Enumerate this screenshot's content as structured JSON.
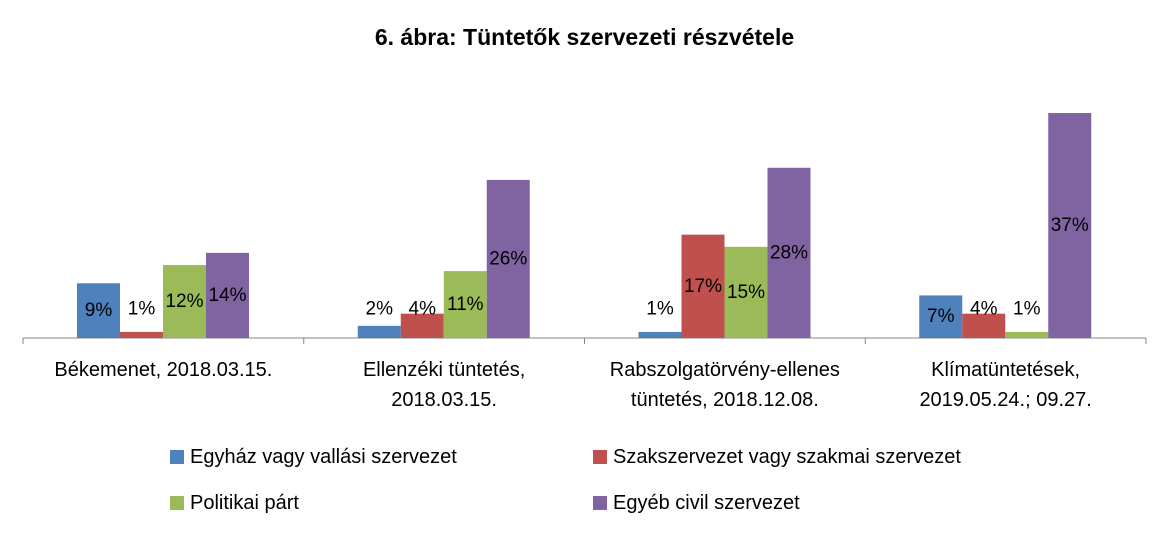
{
  "chart_data": {
    "type": "bar",
    "title": "6. ábra: Tüntetők szervezeti részvétele",
    "categories": [
      [
        "Békemenet, 2018.03.15."
      ],
      [
        "Ellenzéki tüntetés,",
        "2018.03.15."
      ],
      [
        "Rabszolgatörvény-ellenes",
        "tüntetés, 2018.12.08."
      ],
      [
        "Klímatüntetések,",
        "2019.05.24.; 09.27."
      ]
    ],
    "series": [
      {
        "name": "Egyház vagy vallási szervezet",
        "color": "#4F81BD",
        "values": [
          9,
          2,
          1,
          7
        ],
        "labels": [
          "9%",
          "2%",
          "1%",
          "7%"
        ]
      },
      {
        "name": "Szakszervezet vagy szakmai szervezet",
        "color": "#C0504D",
        "values": [
          1,
          4,
          17,
          4
        ],
        "labels": [
          "1%",
          "4%",
          "17%",
          "4%"
        ]
      },
      {
        "name": "Politikai párt",
        "color": "#9BBB59",
        "values": [
          12,
          11,
          15,
          1
        ],
        "labels": [
          "12%",
          "11%",
          "15%",
          "1%"
        ]
      },
      {
        "name": "Egyéb civil szervezet",
        "color": "#8064A2",
        "values": [
          14,
          26,
          28,
          37
        ],
        "labels": [
          "14%",
          "26%",
          "28%",
          "37%"
        ]
      }
    ],
    "xlabel": "",
    "ylabel": "",
    "ylim": [
      0,
      40
    ],
    "grid": false,
    "legend": "bottom"
  }
}
